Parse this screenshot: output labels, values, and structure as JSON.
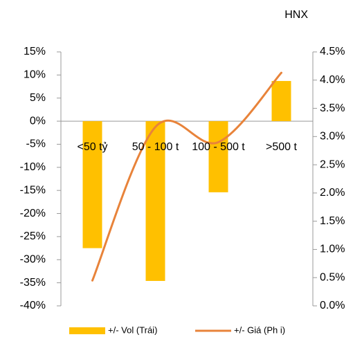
{
  "chart_data": {
    "type": "bar_line",
    "title": "HNX",
    "categories": [
      "<50 tỷ",
      "50 - 100 t",
      "100 - 500 t",
      ">500 t"
    ],
    "series": [
      {
        "name": "+/- Vol (Trái)",
        "type": "bar",
        "color": "#FFC000",
        "values": [
          -27.5,
          -34.6,
          -15.4,
          8.7
        ]
      },
      {
        "name": "+/- Giá (Ph i)",
        "type": "line",
        "axis": "y2",
        "color": "#E8833A",
        "values": [
          0.45,
          3.17,
          2.9,
          4.13
        ]
      }
    ],
    "ylim": [
      -40,
      15
    ],
    "yticks": [
      {
        "value": -40,
        "label": "-40%"
      },
      {
        "value": -35,
        "label": "-35%"
      },
      {
        "value": -30,
        "label": "-30%"
      },
      {
        "value": -25,
        "label": "-25%"
      },
      {
        "value": -20,
        "label": "-20%"
      },
      {
        "value": -15,
        "label": "-15%"
      },
      {
        "value": -10,
        "label": "-10%"
      },
      {
        "value": -5,
        "label": "-5%"
      },
      {
        "value": 0,
        "label": "0%"
      },
      {
        "value": 5,
        "label": "5%"
      },
      {
        "value": 10,
        "label": "10%"
      },
      {
        "value": 15,
        "label": "15%"
      }
    ],
    "y2lim": [
      0,
      4.5
    ],
    "y2ticks": [
      {
        "value": 0,
        "label": "0.0%"
      },
      {
        "value": 0.5,
        "label": "0.5%"
      },
      {
        "value": 1,
        "label": "1.0%"
      },
      {
        "value": 1.5,
        "label": "1.5%"
      },
      {
        "value": 2,
        "label": "2.0%"
      },
      {
        "value": 2.5,
        "label": "2.5%"
      },
      {
        "value": 3,
        "label": "3.0%"
      },
      {
        "value": 3.5,
        "label": "3.5%"
      },
      {
        "value": 4,
        "label": "4.0%"
      },
      {
        "value": 4.5,
        "label": "4.5%"
      }
    ]
  }
}
